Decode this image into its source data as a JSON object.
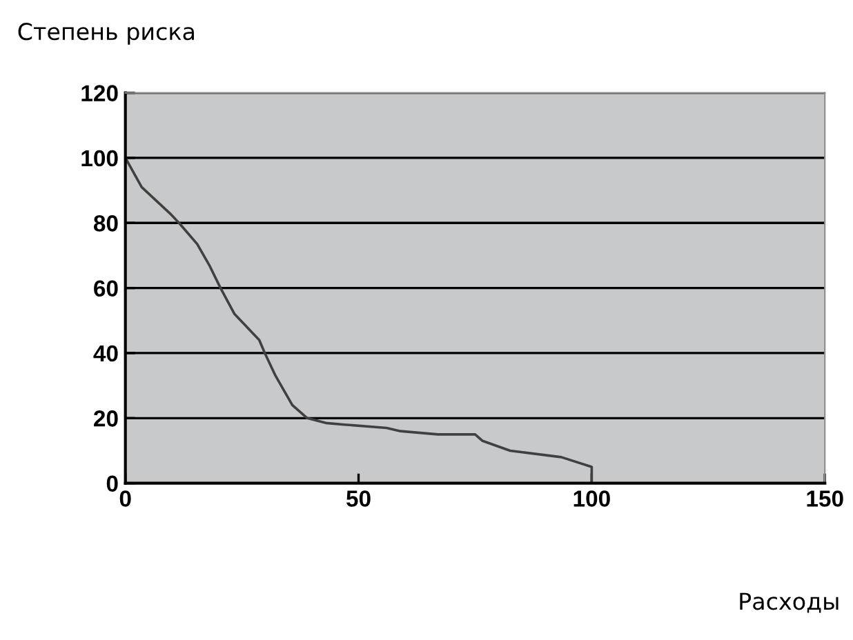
{
  "chart_data": {
    "type": "line",
    "ylabel": "Степень риска",
    "xlabel": "Расходы",
    "series": [
      {
        "color": "#404040",
        "x": [
          0,
          3.5,
          9.5,
          11.5,
          15.4,
          18,
          20.4,
          23.4,
          28.7,
          29.9,
          32.2,
          35.8,
          39,
          43,
          47,
          56,
          59,
          67,
          75,
          76.6,
          82.5,
          93.5,
          100,
          100
        ],
        "values": [
          100,
          91,
          83,
          80,
          73.5,
          67,
          60,
          52,
          44,
          40,
          33,
          24,
          20,
          18.5,
          18,
          17,
          16,
          15,
          15,
          13,
          10,
          8,
          5,
          0
        ]
      }
    ],
    "xlim": [
      0,
      150
    ],
    "xticks": [
      0,
      50,
      100,
      150
    ],
    "ylim": [
      0,
      120
    ],
    "yticks": [
      0,
      20,
      40,
      60,
      80,
      100,
      120
    ],
    "grid": "y",
    "legend": false,
    "marker": "none",
    "line_style": "solid"
  }
}
